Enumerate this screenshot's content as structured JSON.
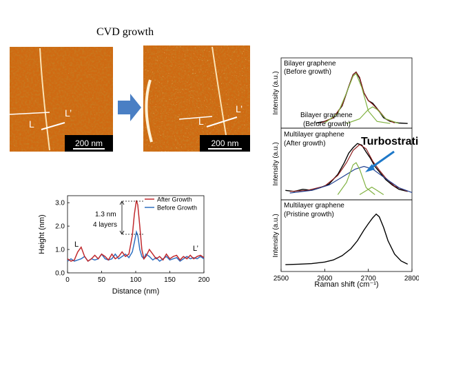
{
  "figure": {
    "title": "CVD growth",
    "afm_left": {
      "scale_label": "200 nm",
      "marker_l": "L",
      "marker_lp": "L’"
    },
    "afm_right": {
      "scale_label": "200 nm",
      "marker_l": "L",
      "marker_lp": "L’"
    }
  },
  "colors": {
    "afm_base": "#cf6a12",
    "afm_dark": "#8a3c06",
    "afm_light": "#f3b04c",
    "after_growth": "#c0282c",
    "before_growth": "#2e6fc0",
    "arrow_fill": "#4a7fc4",
    "fit_green": "#7fb13f",
    "fit_red": "#8b1c1c",
    "fit_blue": "#1f3f8f",
    "annotation_blue": "#1e78c8"
  },
  "height_chart": {
    "annotation_height": "1.3 nm",
    "annotation_layers": "4 layers",
    "marker_l": "L",
    "marker_lp": "L’"
  },
  "raman": {
    "panels": [
      {
        "label_line1": "Bilayer graphene",
        "label_line2": "(Before growth)",
        "inner_label1": "Bilayer graphene",
        "inner_label2": "(Before growth)"
      },
      {
        "label_line1": "Multilayer graphene",
        "label_line2": "(After growth)",
        "annotation": "Turbostratic"
      },
      {
        "label_line1": "Multilayer graphene",
        "label_line2": "(Pristine growth)"
      }
    ]
  },
  "chart_data": [
    {
      "type": "line",
      "title": "",
      "xlabel": "Distance (nm)",
      "ylabel": "Height (nm)",
      "xlim": [
        0,
        200
      ],
      "ylim": [
        0,
        3.3
      ],
      "xticks": [
        "0",
        "50",
        "100",
        "150",
        "200"
      ],
      "yticks": [
        "0.0",
        "1.0",
        "2.0",
        "3.0"
      ],
      "legend": "top-right",
      "grid": false,
      "series": [
        {
          "name": "After Growth",
          "x": [
            0,
            5,
            10,
            15,
            20,
            25,
            30,
            35,
            40,
            45,
            50,
            55,
            60,
            65,
            70,
            75,
            80,
            85,
            90,
            95,
            98,
            101,
            103,
            106,
            109,
            112,
            115,
            120,
            125,
            130,
            135,
            140,
            145,
            150,
            155,
            160,
            165,
            170,
            175,
            180,
            185,
            190,
            195,
            200
          ],
          "values": [
            0.6,
            0.5,
            0.55,
            0.9,
            1.1,
            0.7,
            0.5,
            0.6,
            0.75,
            0.6,
            0.8,
            0.7,
            0.55,
            0.8,
            0.6,
            0.7,
            0.9,
            0.7,
            0.8,
            1.6,
            2.5,
            3.1,
            2.9,
            2.0,
            1.0,
            0.6,
            0.7,
            1.0,
            0.8,
            0.6,
            0.7,
            0.55,
            0.8,
            0.6,
            0.7,
            0.75,
            0.55,
            0.7,
            0.6,
            0.75,
            0.6,
            0.7,
            0.75,
            0.65
          ]
        },
        {
          "name": "Before Growth",
          "x": [
            0,
            5,
            10,
            15,
            20,
            25,
            30,
            35,
            40,
            45,
            50,
            55,
            60,
            65,
            70,
            75,
            80,
            85,
            90,
            95,
            98,
            101,
            103,
            106,
            109,
            112,
            115,
            120,
            125,
            130,
            135,
            140,
            145,
            150,
            155,
            160,
            165,
            170,
            175,
            180,
            185,
            190,
            195,
            200
          ],
          "values": [
            0.5,
            0.6,
            0.5,
            0.55,
            0.6,
            0.7,
            0.5,
            0.6,
            0.55,
            0.6,
            0.8,
            0.6,
            0.55,
            0.6,
            0.8,
            0.6,
            0.7,
            0.8,
            0.65,
            0.9,
            1.3,
            1.75,
            1.6,
            1.0,
            0.7,
            0.6,
            0.8,
            0.7,
            0.55,
            0.65,
            0.5,
            0.6,
            0.7,
            0.55,
            0.6,
            0.65,
            0.5,
            0.6,
            0.7,
            0.6,
            0.65,
            0.6,
            0.7,
            0.6
          ]
        }
      ]
    },
    {
      "type": "line",
      "title": "",
      "xlabel": "Raman shift (cm⁻¹)",
      "ylabel": "Intensity (a.u.)",
      "xlim": [
        2500,
        2800
      ],
      "xticks": [
        "2500",
        "2600",
        "2700",
        "2800"
      ],
      "grid": false,
      "series": [
        {
          "panel": 0,
          "kind": "data",
          "x": [
            2580,
            2600,
            2620,
            2640,
            2655,
            2665,
            2672,
            2680,
            2690,
            2700,
            2710,
            2720,
            2735,
            2750,
            2770,
            2790
          ],
          "values": [
            0.02,
            0.05,
            0.12,
            0.35,
            0.72,
            0.95,
            1.0,
            0.88,
            0.6,
            0.45,
            0.4,
            0.3,
            0.12,
            0.05,
            0.02,
            0.01
          ]
        },
        {
          "panel": 0,
          "kind": "fit",
          "x": [
            2590,
            2620,
            2640,
            2655,
            2665,
            2672,
            2680,
            2690,
            2700,
            2710,
            2725,
            2740,
            2760
          ],
          "values": [
            0.02,
            0.12,
            0.36,
            0.72,
            0.95,
            1.0,
            0.9,
            0.6,
            0.45,
            0.38,
            0.25,
            0.1,
            0.02
          ]
        },
        {
          "panel": 0,
          "kind": "fit",
          "x": [
            2600,
            2630,
            2650,
            2665,
            2672,
            2685,
            2700,
            2720,
            2750
          ],
          "values": [
            0.02,
            0.2,
            0.6,
            0.92,
            0.97,
            0.7,
            0.25,
            0.05,
            0.01
          ]
        },
        {
          "panel": 0,
          "kind": "fit",
          "x": [
            2650,
            2680,
            2700,
            2710,
            2720,
            2740,
            2770
          ],
          "values": [
            0.01,
            0.1,
            0.28,
            0.33,
            0.28,
            0.1,
            0.01
          ]
        },
        {
          "panel": 1,
          "kind": "data",
          "x": [
            2510,
            2530,
            2550,
            2570,
            2590,
            2610,
            2630,
            2645,
            2655,
            2665,
            2675,
            2685,
            2695,
            2705,
            2715,
            2725,
            2740,
            2755,
            2770,
            2790
          ],
          "values": [
            0.1,
            0.08,
            0.12,
            0.1,
            0.15,
            0.22,
            0.4,
            0.62,
            0.8,
            0.9,
            0.98,
            0.95,
            0.82,
            0.7,
            0.55,
            0.45,
            0.3,
            0.2,
            0.12,
            0.08
          ]
        },
        {
          "panel": 1,
          "kind": "fit",
          "x": [
            2520,
            2560,
            2600,
            2630,
            2650,
            2665,
            2680,
            2695,
            2710,
            2725,
            2740,
            2760,
            2790
          ],
          "values": [
            0.08,
            0.1,
            0.18,
            0.38,
            0.62,
            0.85,
            0.96,
            0.88,
            0.65,
            0.48,
            0.33,
            0.18,
            0.08
          ]
        },
        {
          "panel": 1,
          "kind": "fit",
          "x": [
            2520,
            2570,
            2610,
            2640,
            2670,
            2690,
            2710,
            2740,
            2770,
            2800
          ],
          "values": [
            0.05,
            0.1,
            0.2,
            0.35,
            0.5,
            0.55,
            0.5,
            0.32,
            0.15,
            0.06
          ]
        },
        {
          "panel": 1,
          "kind": "fit",
          "x": [
            2630,
            2650,
            2665,
            2672,
            2680,
            2695,
            2715
          ],
          "values": [
            0.02,
            0.25,
            0.58,
            0.62,
            0.5,
            0.15,
            0.02
          ]
        },
        {
          "panel": 1,
          "kind": "fit",
          "x": [
            2680,
            2700,
            2708,
            2716,
            2735
          ],
          "values": [
            0.02,
            0.12,
            0.16,
            0.12,
            0.02
          ]
        },
        {
          "panel": 2,
          "kind": "data",
          "x": [
            2510,
            2540,
            2570,
            2600,
            2620,
            2640,
            2660,
            2675,
            2690,
            2700,
            2710,
            2718,
            2725,
            2735,
            2745,
            2760,
            2775,
            2790
          ],
          "values": [
            0.05,
            0.06,
            0.07,
            0.1,
            0.14,
            0.22,
            0.35,
            0.5,
            0.7,
            0.82,
            0.93,
            1.0,
            0.95,
            0.75,
            0.5,
            0.25,
            0.12,
            0.06
          ]
        }
      ]
    }
  ]
}
